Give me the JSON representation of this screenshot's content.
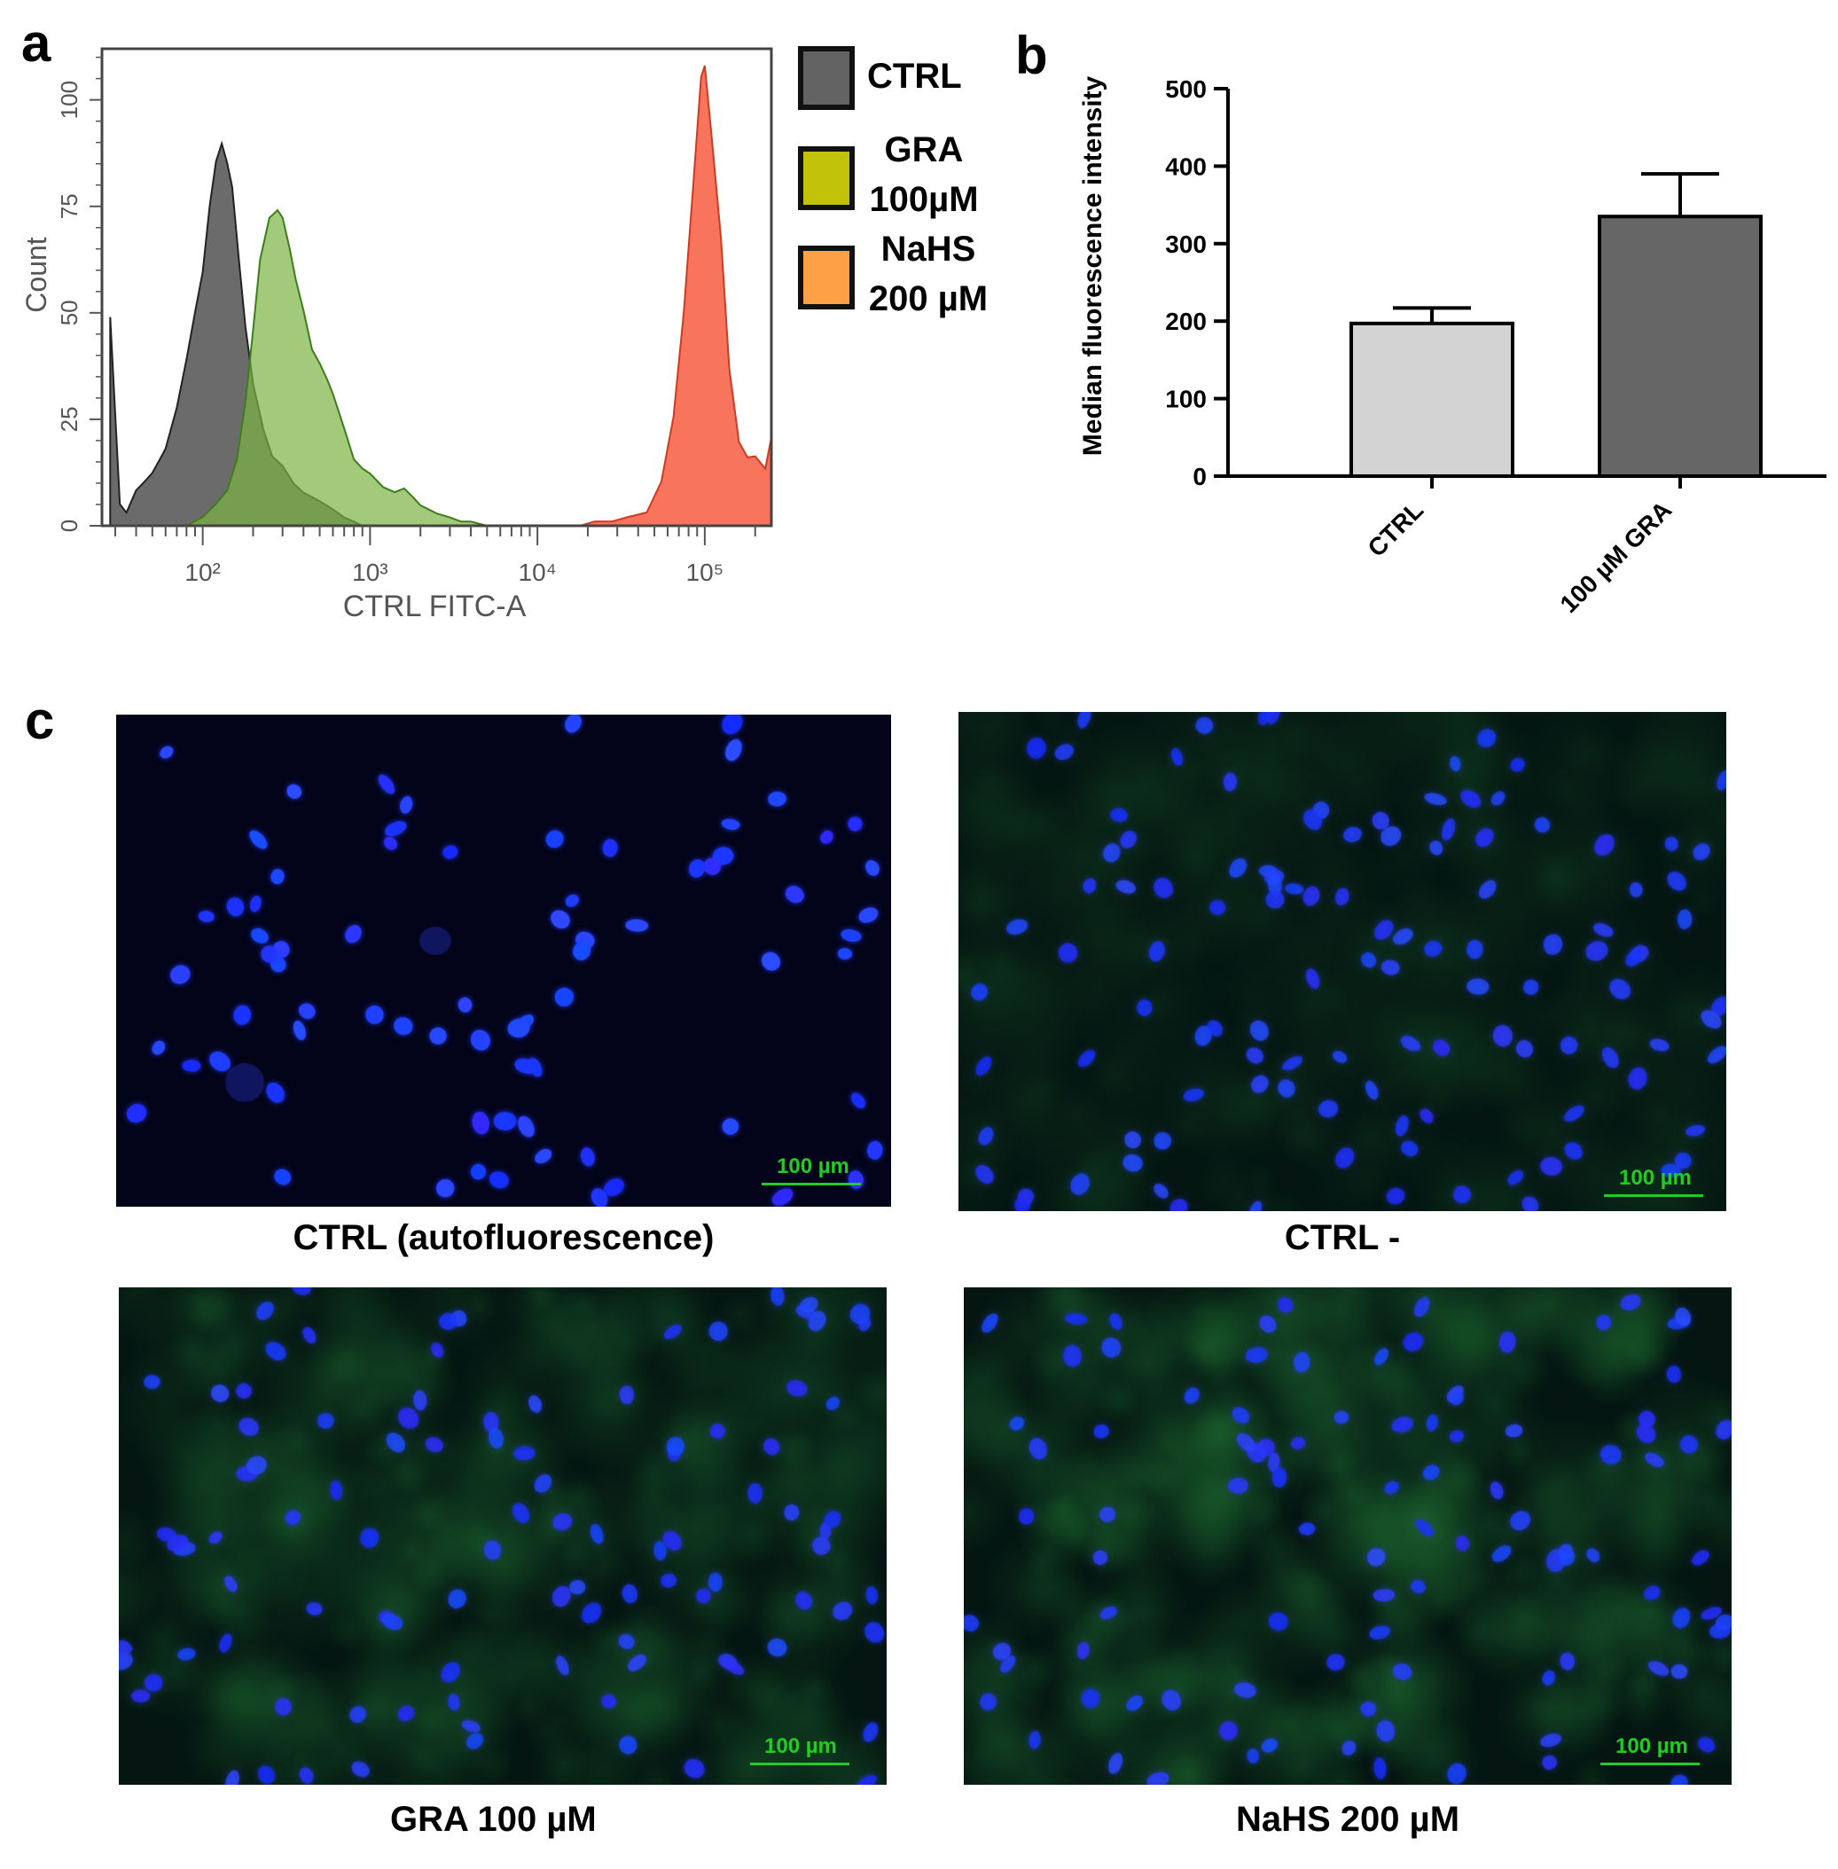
{
  "panel_labels": {
    "a": "a",
    "b": "b",
    "c": "c"
  },
  "legend": [
    {
      "label_line1": "CTRL",
      "label_line2": "",
      "color": "#636363"
    },
    {
      "label_line1": "GRA",
      "label_line2": "100µM",
      "color": "#c2c20a"
    },
    {
      "label_line1": "NaHS",
      "label_line2": "200 µM",
      "color": "#fda046"
    }
  ],
  "micrographs": [
    {
      "caption": "CTRL (autofluorescence)",
      "scalebar": "100 µm",
      "green_level": 0.0
    },
    {
      "caption": "CTRL -",
      "scalebar": "100 µm",
      "green_level": 0.25
    },
    {
      "caption": "GRA 100 µM",
      "scalebar": "100 µm",
      "green_level": 0.55
    },
    {
      "caption": "NaHS 200 µM",
      "scalebar": "100 µm",
      "green_level": 0.7
    }
  ],
  "chart_data": [
    {
      "type": "area",
      "xlabel": "CTRL FITC-A",
      "ylabel": "Count",
      "x_scale": "log",
      "xlim": [
        25,
        250000
      ],
      "ylim": [
        0,
        112
      ],
      "x_tick_labels": [
        "10²",
        "10³",
        "10⁴",
        "10⁵"
      ],
      "x_tick_values": [
        100,
        1000,
        10000,
        100000
      ],
      "y_ticks": [
        0,
        25,
        50,
        75,
        100
      ],
      "series": [
        {
          "name": "CTRL",
          "color": "#636363",
          "x": [
            28,
            32,
            35,
            40,
            45,
            50,
            55,
            60,
            70,
            80,
            90,
            100,
            110,
            120,
            130,
            140,
            150,
            165,
            180,
            200,
            230,
            260,
            300,
            350,
            400,
            500,
            600,
            700,
            800,
            900
          ],
          "y": [
            49,
            5,
            3,
            8,
            10,
            12,
            15,
            18,
            28,
            40,
            52,
            62,
            78,
            88,
            91,
            85,
            78,
            60,
            45,
            32,
            22,
            16,
            14,
            10,
            8,
            6,
            4,
            2,
            1,
            0
          ]
        },
        {
          "name": "GRA 100µM",
          "color": "#7ab342",
          "x": [
            80,
            100,
            120,
            140,
            160,
            180,
            200,
            220,
            250,
            280,
            300,
            330,
            360,
            400,
            450,
            500,
            550,
            600,
            700,
            800,
            900,
            1000,
            1200,
            1400,
            1600,
            1800,
            2000,
            2500,
            3000,
            3500,
            4000,
            5000
          ],
          "y": [
            0,
            2,
            5,
            8,
            15,
            28,
            45,
            62,
            73,
            76,
            75,
            68,
            60,
            52,
            42,
            38,
            34,
            30,
            22,
            15,
            13,
            12,
            9,
            8,
            9,
            7,
            5,
            3,
            2,
            1,
            1,
            0
          ]
        },
        {
          "name": "NaHS 200 µM",
          "color": "#f8654b",
          "x": [
            18000,
            22000,
            28000,
            35000,
            45000,
            55000,
            65000,
            75000,
            85000,
            95000,
            100000,
            110000,
            125000,
            140000,
            160000,
            180000,
            200000,
            230000,
            250000
          ],
          "y": [
            0,
            1,
            1,
            2,
            3,
            10,
            25,
            50,
            80,
            108,
            112,
            95,
            70,
            38,
            20,
            16,
            16,
            13,
            20
          ]
        }
      ]
    },
    {
      "type": "bar",
      "ylabel": "Median fluorescence intensity",
      "categories": [
        "CTRL",
        "100 µM GRA"
      ],
      "values": [
        197,
        335
      ],
      "errors": [
        20,
        55
      ],
      "colors": [
        "#d3d3d3",
        "#666666"
      ],
      "ylim": [
        0,
        500
      ],
      "y_ticks": [
        0,
        100,
        200,
        300,
        400,
        500
      ]
    }
  ]
}
